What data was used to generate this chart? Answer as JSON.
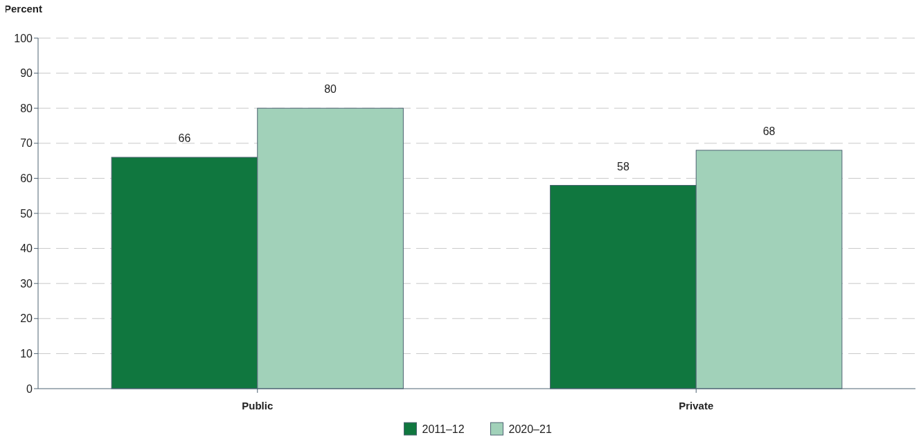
{
  "chart_data": {
    "type": "bar",
    "ylabel": "Percent",
    "categories": [
      "Public",
      "Private"
    ],
    "series": [
      {
        "name": "2011–12",
        "color": "#10773f",
        "values": [
          66,
          58
        ]
      },
      {
        "name": "2020–21",
        "color": "#a1d1b9",
        "values": [
          80,
          68
        ]
      }
    ],
    "ylim": [
      0,
      100
    ],
    "yticks": [
      0,
      10,
      20,
      30,
      40,
      50,
      60,
      70,
      80,
      90,
      100
    ],
    "grid": "y",
    "legend": "bottom",
    "data_labels": true
  }
}
